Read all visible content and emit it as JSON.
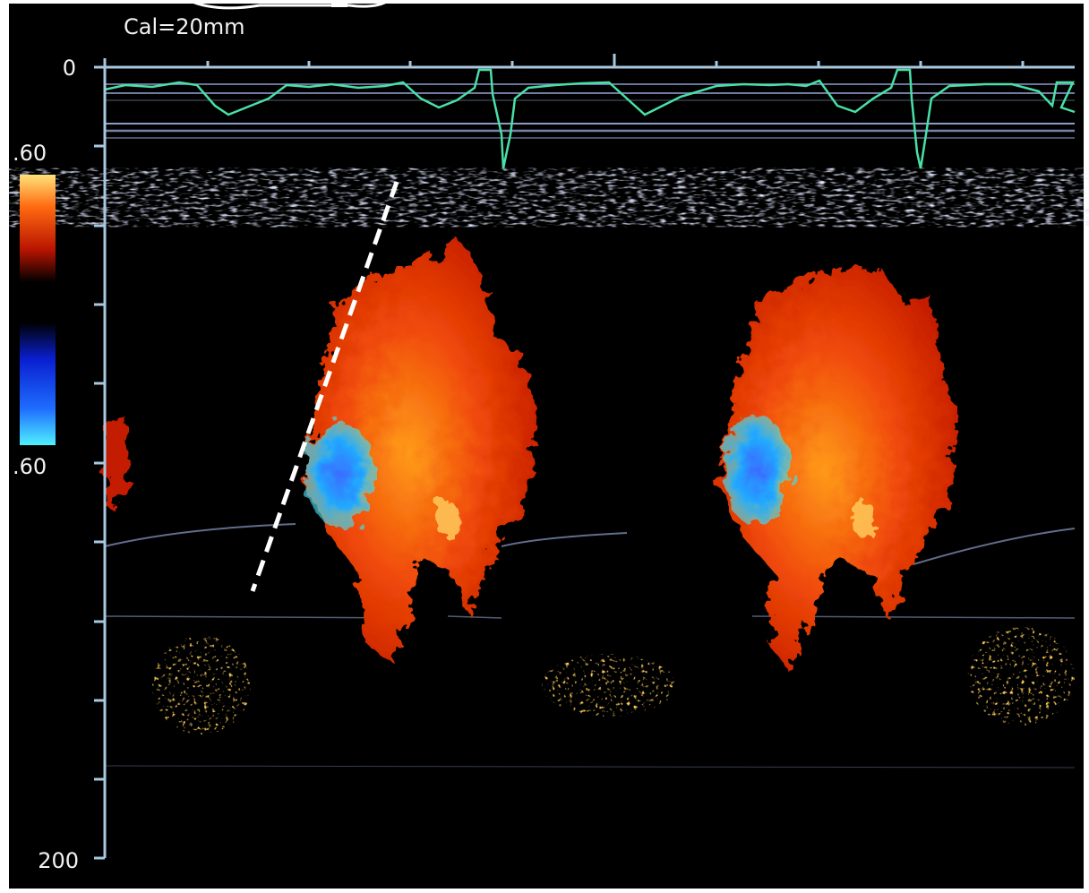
{
  "header": {
    "calibration": "Cal=20mm"
  },
  "depth_axis": {
    "top_label": "0",
    "bottom_label": "200"
  },
  "color_scale": {
    "upper_label": ".60",
    "lower_label": ".60"
  }
}
